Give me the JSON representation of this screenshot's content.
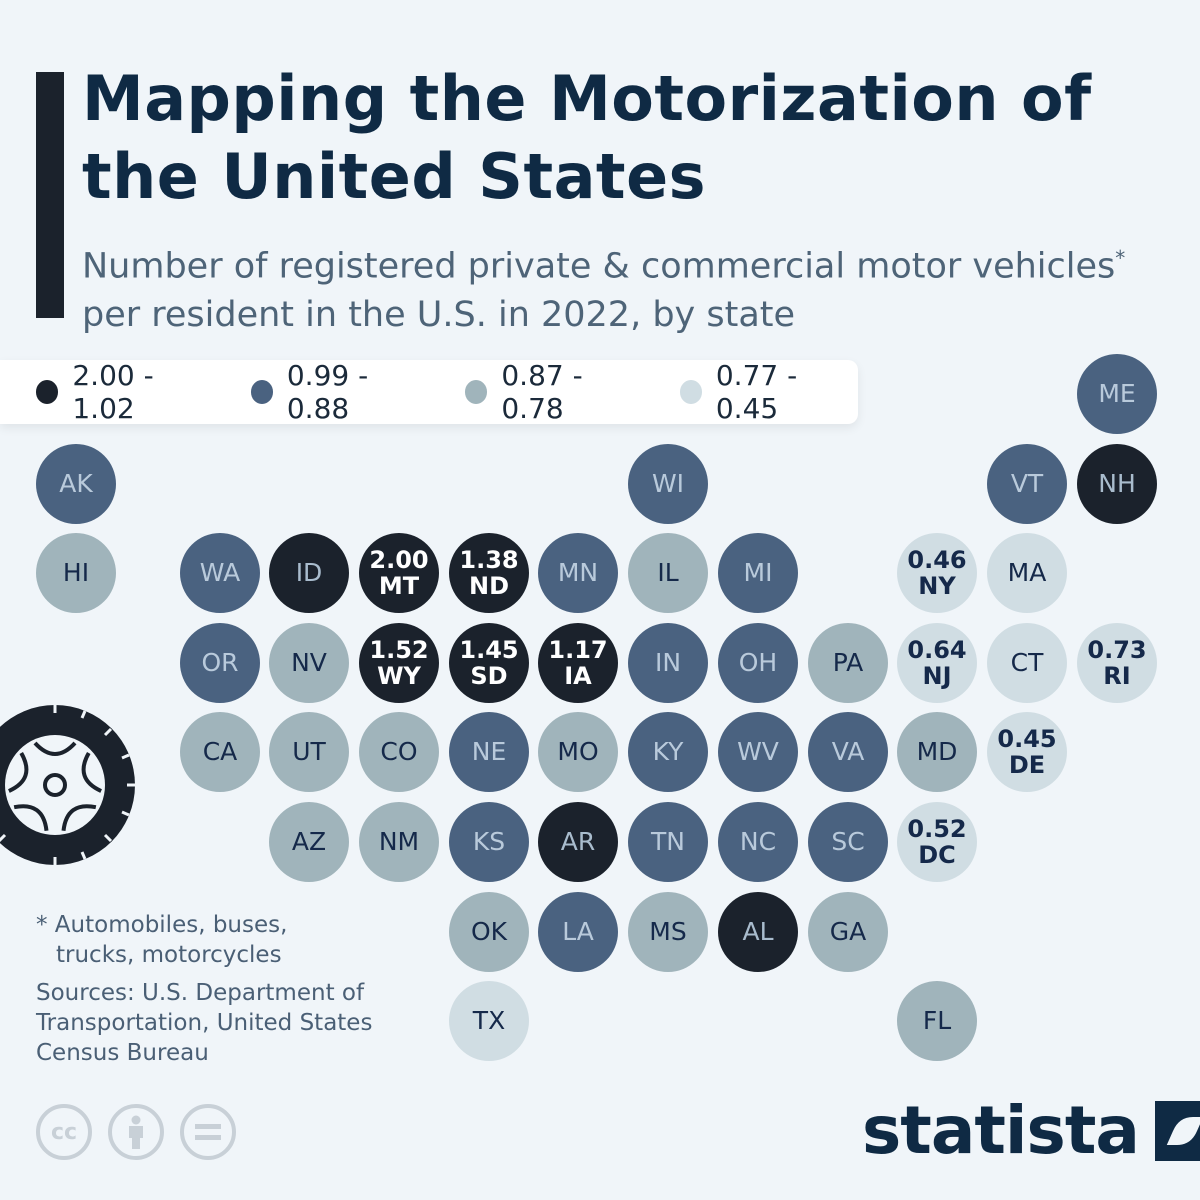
{
  "title": "Mapping the Motorization of the United States",
  "subtitle": "Number of registered private & commercial motor vehicles",
  "subtitle_mark": "*",
  "subtitle_line2": "per resident in the U.S. in 2022, by state",
  "legend": [
    {
      "label": "2.00 - 1.02",
      "color": "#1b222c"
    },
    {
      "label": "0.99 - 0.88",
      "color": "#4a6280"
    },
    {
      "label": "0.87 - 0.78",
      "color": "#a0b4bb"
    },
    {
      "label": "0.77 - 0.45",
      "color": "#d0dde3"
    }
  ],
  "states": [
    {
      "abbr": "ME",
      "cat": 1
    },
    {
      "abbr": "AK",
      "cat": 1
    },
    {
      "abbr": "WI",
      "cat": 1
    },
    {
      "abbr": "VT",
      "cat": 1
    },
    {
      "abbr": "NH",
      "cat": 0
    },
    {
      "abbr": "HI",
      "cat": 2
    },
    {
      "abbr": "WA",
      "cat": 1
    },
    {
      "abbr": "ID",
      "cat": 0
    },
    {
      "abbr": "MT",
      "cat": 0,
      "value": "2.00"
    },
    {
      "abbr": "ND",
      "cat": 0,
      "value": "1.38"
    },
    {
      "abbr": "MN",
      "cat": 1
    },
    {
      "abbr": "IL",
      "cat": 2
    },
    {
      "abbr": "MI",
      "cat": 1
    },
    {
      "abbr": "NY",
      "cat": 3,
      "value": "0.46"
    },
    {
      "abbr": "MA",
      "cat": 3
    },
    {
      "abbr": "OR",
      "cat": 1
    },
    {
      "abbr": "NV",
      "cat": 2
    },
    {
      "abbr": "WY",
      "cat": 0,
      "value": "1.52"
    },
    {
      "abbr": "SD",
      "cat": 0,
      "value": "1.45"
    },
    {
      "abbr": "IA",
      "cat": 0,
      "value": "1.17"
    },
    {
      "abbr": "IN",
      "cat": 1
    },
    {
      "abbr": "OH",
      "cat": 1
    },
    {
      "abbr": "PA",
      "cat": 2
    },
    {
      "abbr": "NJ",
      "cat": 3,
      "value": "0.64"
    },
    {
      "abbr": "CT",
      "cat": 3
    },
    {
      "abbr": "RI",
      "cat": 3,
      "value": "0.73"
    },
    {
      "abbr": "CA",
      "cat": 2
    },
    {
      "abbr": "UT",
      "cat": 2
    },
    {
      "abbr": "CO",
      "cat": 2
    },
    {
      "abbr": "NE",
      "cat": 1
    },
    {
      "abbr": "MO",
      "cat": 2
    },
    {
      "abbr": "KY",
      "cat": 1
    },
    {
      "abbr": "WV",
      "cat": 1
    },
    {
      "abbr": "VA",
      "cat": 1
    },
    {
      "abbr": "MD",
      "cat": 2
    },
    {
      "abbr": "DE",
      "cat": 3,
      "value": "0.45"
    },
    {
      "abbr": "AZ",
      "cat": 2
    },
    {
      "abbr": "NM",
      "cat": 2
    },
    {
      "abbr": "KS",
      "cat": 1
    },
    {
      "abbr": "AR",
      "cat": 0
    },
    {
      "abbr": "TN",
      "cat": 1
    },
    {
      "abbr": "NC",
      "cat": 1
    },
    {
      "abbr": "SC",
      "cat": 1
    },
    {
      "abbr": "DC",
      "cat": 3,
      "value": "0.52"
    },
    {
      "abbr": "OK",
      "cat": 2
    },
    {
      "abbr": "LA",
      "cat": 1
    },
    {
      "abbr": "MS",
      "cat": 2
    },
    {
      "abbr": "AL",
      "cat": 0
    },
    {
      "abbr": "GA",
      "cat": 2
    },
    {
      "abbr": "TX",
      "cat": 3
    },
    {
      "abbr": "FL",
      "cat": 2
    }
  ],
  "footnote": "* Automobiles, buses, trucks, motorcycles",
  "sources": "Sources: U.S. Department of Transportation, United States Census Bureau",
  "license_icons": [
    "cc-icon",
    "attribution-icon",
    "no-derivatives-icon"
  ],
  "license_cc_text": "cc",
  "brand": "statista"
}
